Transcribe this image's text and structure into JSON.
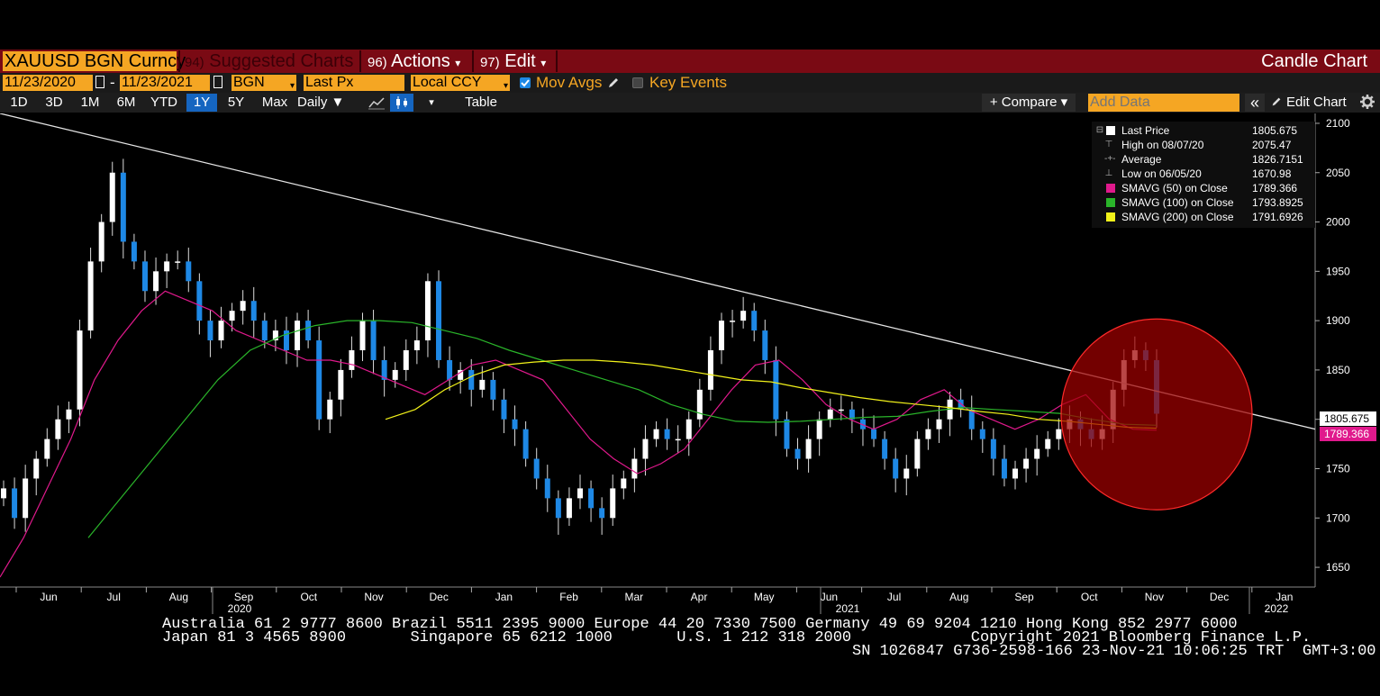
{
  "title_bar": {
    "ticker": "XAUUSD BGN Curncy",
    "menu_suggested": {
      "num": "94)",
      "label": "Suggested Charts"
    },
    "menu_actions": {
      "num": "96)",
      "label": "Actions",
      "arrow": "▾"
    },
    "menu_edit": {
      "num": "97)",
      "label": "Edit",
      "arrow": "▾"
    },
    "chart_type": "Candle Chart"
  },
  "controls": {
    "start_date": "11/23/2020",
    "dash": "-",
    "end_date": "11/23/2021",
    "source": "BGN",
    "field": "Last Px",
    "currency": "Local CCY",
    "mov_avgs_label": "Mov Avgs",
    "key_events_label": "Key Events",
    "dropdown_arrow": "▾"
  },
  "toolbar": {
    "periods": [
      "1D",
      "3D",
      "1M",
      "6M",
      "YTD",
      "1Y",
      "5Y",
      "Max"
    ],
    "active_period": "1Y",
    "frequency": "Daily ▼",
    "table_label": "Table",
    "compare_label": "+ Compare ▾",
    "add_data_placeholder": "Add Data",
    "collapse_label": "«",
    "edit_chart_label": "Edit Chart",
    "menu_arrow": "▾"
  },
  "legend": {
    "last_price": {
      "label": "Last Price",
      "value": "1805.675",
      "color": "#ffffff"
    },
    "high": {
      "label": "High on 08/07/20",
      "value": "2075.47"
    },
    "average": {
      "label": "Average",
      "value": "1826.7151"
    },
    "low": {
      "label": "Low on 06/05/20",
      "value": "1670.98"
    },
    "sma50": {
      "label": "SMAVG (50)  on Close",
      "value": "1789.366",
      "color": "#e0198c"
    },
    "sma100": {
      "label": "SMAVG (100)  on Close",
      "value": "1793.8925",
      "color": "#2ab52a"
    },
    "sma200": {
      "label": "SMAVG (200)  on Close",
      "value": "1791.6926",
      "color": "#f2f21a"
    }
  },
  "price_tags": {
    "last": "1805.675",
    "sma50": "1789.366"
  },
  "chart_data": {
    "type": "candlestick",
    "y_ticks": [
      2100,
      2050,
      2000,
      1950,
      1900,
      1850,
      1800,
      1750,
      1700,
      1650
    ],
    "ylim": [
      1630,
      2110
    ],
    "x_month_labels": [
      "Jun",
      "Jul",
      "Aug",
      "Sep",
      "Oct",
      "Nov",
      "Dec",
      "Jan",
      "Feb",
      "Mar",
      "Apr",
      "May",
      "Jun",
      "Jul",
      "Aug",
      "Sep",
      "Oct",
      "Nov",
      "Dec",
      "Jan"
    ],
    "x_year_labels": [
      "2020",
      "2021",
      "2022"
    ],
    "series": [
      {
        "name": "Last Price",
        "color": "#ffffff",
        "values": [
          1730,
          1700,
          1740,
          1760,
          1780,
          1800,
          1810,
          1890,
          1960,
          2000,
          2050,
          1980,
          1960,
          1930,
          1950,
          1960,
          1960,
          1940,
          1900,
          1880,
          1900,
          1910,
          1920,
          1900,
          1880,
          1890,
          1870,
          1900,
          1880,
          1800,
          1820,
          1850,
          1870,
          1900,
          1860,
          1840,
          1850,
          1870,
          1880,
          1940,
          1860,
          1840,
          1850,
          1830,
          1840,
          1820,
          1800,
          1790,
          1760,
          1740,
          1720,
          1700,
          1720,
          1730,
          1710,
          1700,
          1730,
          1740,
          1760,
          1780,
          1790,
          1780,
          1780,
          1800,
          1830,
          1870,
          1900,
          1900,
          1910,
          1890,
          1860,
          1800,
          1770,
          1760,
          1780,
          1800,
          1810,
          1810,
          1800,
          1790,
          1780,
          1760,
          1740,
          1750,
          1780,
          1790,
          1800,
          1820,
          1810,
          1790,
          1780,
          1760,
          1740,
          1750,
          1760,
          1770,
          1780,
          1790,
          1800,
          1790,
          1780,
          1790,
          1830,
          1860,
          1870,
          1860,
          1805.675
        ]
      },
      {
        "name": "SMAVG (50) on Close",
        "color": "#e0198c",
        "values": [
          1640,
          1680,
          1730,
          1780,
          1840,
          1880,
          1910,
          1930,
          1920,
          1910,
          1890,
          1880,
          1870,
          1860,
          1860,
          1855,
          1845,
          1835,
          1825,
          1840,
          1855,
          1860,
          1850,
          1840,
          1810,
          1780,
          1760,
          1745,
          1755,
          1770,
          1800,
          1830,
          1855,
          1860,
          1840,
          1815,
          1800,
          1790,
          1800,
          1820,
          1830,
          1810,
          1800,
          1790,
          1800,
          1815,
          1825,
          1800,
          1790,
          1789
        ]
      },
      {
        "name": "SMAVG (100) on Close",
        "color": "#2ab52a",
        "values": [
          1680,
          1720,
          1760,
          1800,
          1840,
          1870,
          1885,
          1895,
          1900,
          1900,
          1898,
          1890,
          1882,
          1870,
          1860,
          1850,
          1840,
          1830,
          1815,
          1805,
          1798,
          1797,
          1798,
          1800,
          1802,
          1803,
          1808,
          1812,
          1810,
          1808,
          1806,
          1800,
          1795,
          1794
        ]
      },
      {
        "name": "SMAVG (200) on Close",
        "color": "#f2f21a",
        "values": [
          1800,
          1810,
          1830,
          1845,
          1855,
          1858,
          1860,
          1860,
          1858,
          1855,
          1850,
          1845,
          1840,
          1838,
          1832,
          1827,
          1822,
          1818,
          1815,
          1812,
          1808,
          1805,
          1800,
          1798,
          1795,
          1792,
          1791
        ]
      }
    ],
    "annotations": {
      "trend_line": true,
      "highlight_circle": true
    }
  },
  "footer": {
    "line1": "Australia 61 2 9777 8600 Brazil 5511 2395 9000 Europe 44 20 7330 7500 Germany 49 69 9204 1210 Hong Kong 852 2977 6000",
    "line2": "Japan 81 3 4565 8900       Singapore 65 6212 1000       U.S. 1 212 318 2000             Copyright 2021 Bloomberg Finance L.P.",
    "line3": "SN 1026847 G736-2598-166 23-Nov-21 10:06:25 TRT  GMT+3:00"
  }
}
